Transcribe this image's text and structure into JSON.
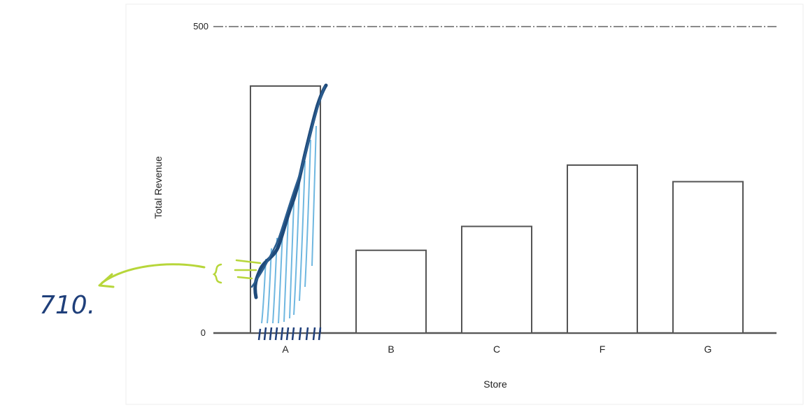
{
  "chart_data": {
    "type": "bar",
    "xlabel": "Store",
    "ylabel": "Total Revenue",
    "categories": [
      "A",
      "B",
      "C",
      "F",
      "G"
    ],
    "values": [
      403,
      135,
      174,
      274,
      247
    ],
    "ylim": [
      0,
      500
    ],
    "yticks": [
      "0",
      "500"
    ],
    "gridlines": [
      500
    ],
    "bar_fill": "#ffffff",
    "bar_stroke": "#555555"
  },
  "annotations": {
    "handwritten_value": "710.",
    "handwritten_value_color": "#1f3f7a",
    "arrow_color": "#b7d63a",
    "scribble_color": "#1f4a7a",
    "tally_color": "#6fb7e0"
  }
}
